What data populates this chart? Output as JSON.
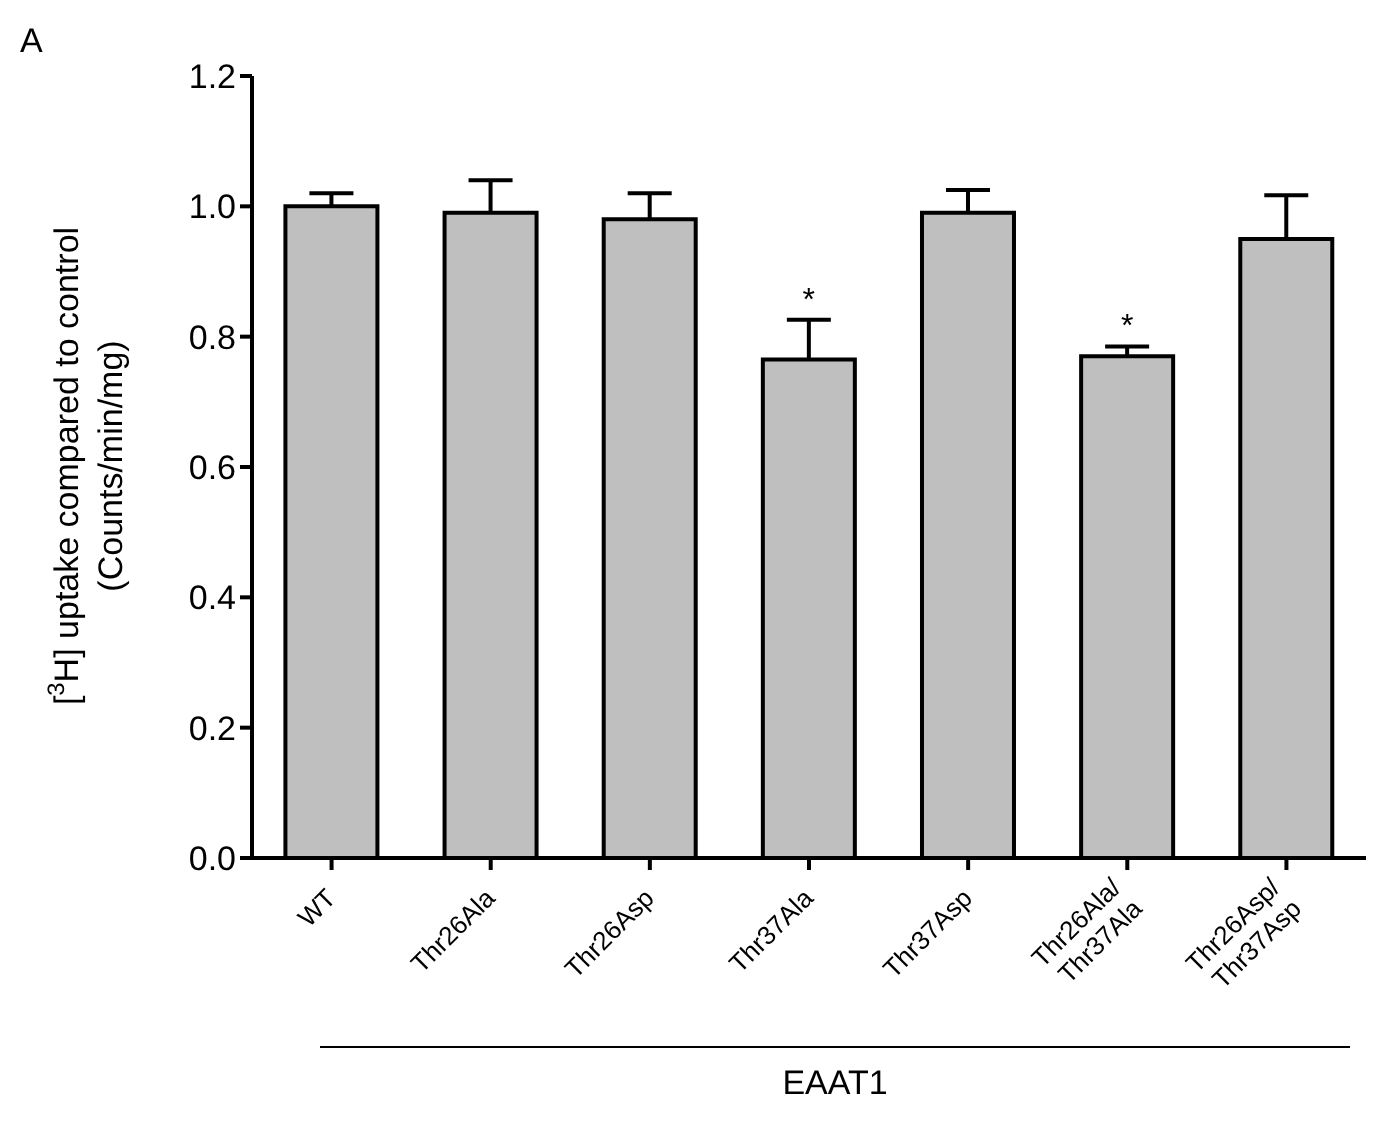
{
  "chart_data": {
    "type": "bar",
    "xlabel": "EAAT1",
    "ylabel": "[$^{3}$H] uptake compared to control\n(Counts/min/mg)",
    "categories": [
      "WT",
      "Thr26Ala",
      "Thr26Asp",
      "Thr37Ala",
      "Thr37Asp",
      "Thr26Ala/\nThr37Ala",
      "Thr26Asp/\nThr37Asp"
    ],
    "values": [
      1.0,
      0.99,
      0.98,
      0.765,
      0.99,
      0.77,
      0.95
    ],
    "errors": [
      [
        1.0,
        1.02
      ],
      [
        0.99,
        1.04
      ],
      [
        0.98,
        1.02
      ],
      [
        0.765,
        0.826
      ],
      [
        0.99,
        1.025
      ],
      [
        0.77,
        0.785
      ],
      [
        0.95,
        1.017
      ]
    ],
    "color": "#bfbfbf",
    "ylim": [
      0,
      1.2
    ],
    "yticks": [
      {
        "value": 0,
        "label": "0.0"
      },
      0.2,
      0.4,
      0.6,
      0.8,
      {
        "value": 1,
        "label": "1.0"
      },
      1.2
    ],
    "grid": false,
    "legend": false,
    "annotations": [
      "A",
      {
        "text": "*",
        "x": "Thr37Ala",
        "y": 0.826
      },
      {
        "text": "*",
        "x": "Thr26Ala/\nThr37Ala",
        "y": 0.785
      }
    ]
  }
}
